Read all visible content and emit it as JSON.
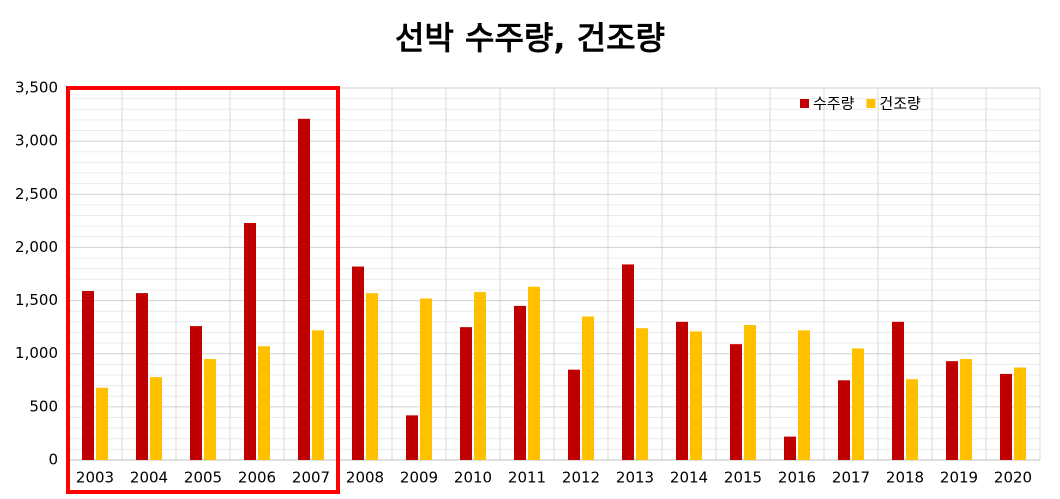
{
  "chart_data": {
    "type": "bar",
    "title": "선박 수주량, 건조량",
    "categories": [
      "2003",
      "2004",
      "2005",
      "2006",
      "2007",
      "2008",
      "2009",
      "2010",
      "2011",
      "2012",
      "2013",
      "2014",
      "2015",
      "2016",
      "2017",
      "2018",
      "2019",
      "2020"
    ],
    "series": [
      {
        "name": "수주량",
        "color": "#c00000",
        "values": [
          1590,
          1570,
          1260,
          2230,
          3210,
          1820,
          420,
          1250,
          1450,
          850,
          1840,
          1300,
          1090,
          220,
          750,
          1300,
          930,
          810
        ]
      },
      {
        "name": "건조량",
        "color": "#ffc000",
        "values": [
          680,
          780,
          950,
          1070,
          1220,
          1570,
          1520,
          1580,
          1630,
          1350,
          1240,
          1210,
          1270,
          1220,
          1050,
          760,
          950,
          870
        ]
      }
    ],
    "ylim": [
      0,
      3500
    ],
    "yticks": [
      0,
      500,
      {
        "value": 1000,
        "label": "1,000"
      },
      {
        "value": 1500,
        "label": "1,500"
      },
      {
        "value": 2000,
        "label": "2,000"
      },
      {
        "value": 2500,
        "label": "2,500"
      },
      {
        "value": 3000,
        "label": "3,000"
      },
      {
        "value": 3500,
        "label": "3,500"
      }
    ],
    "grid": true,
    "legend": "upper right"
  }
}
